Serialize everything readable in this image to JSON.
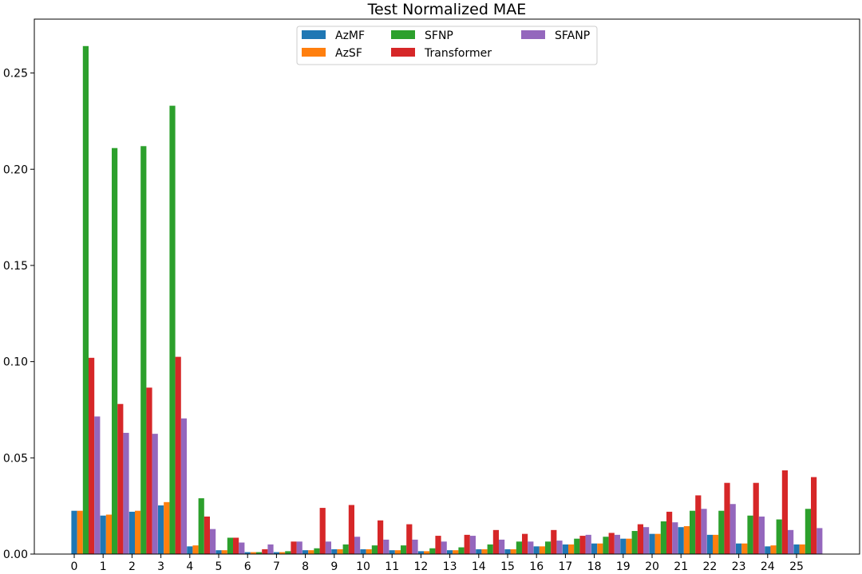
{
  "chart_data": {
    "type": "bar",
    "title": "Test Normalized MAE",
    "xlabel": "",
    "ylabel": "",
    "categories": [
      "0",
      "1",
      "2",
      "3",
      "4",
      "5",
      "6",
      "7",
      "8",
      "9",
      "10",
      "11",
      "12",
      "13",
      "14",
      "15",
      "16",
      "17",
      "18",
      "19",
      "20",
      "21",
      "22",
      "23",
      "24",
      "25"
    ],
    "ylim": [
      0,
      0.278
    ],
    "yticks": [
      0.0,
      0.05,
      0.1,
      0.15,
      0.2,
      0.25
    ],
    "ytick_labels": [
      "0.00",
      "0.05",
      "0.10",
      "0.15",
      "0.20",
      "0.25"
    ],
    "grid": false,
    "legend": {
      "placement": "top-center",
      "columns": 3
    },
    "series": [
      {
        "name": "AzMF",
        "color": "#1f77b4",
        "values": [
          0.0225,
          0.02,
          0.022,
          0.0253,
          0.004,
          0.002,
          0.001,
          0.001,
          0.002,
          0.0025,
          0.0025,
          0.002,
          0.0015,
          0.002,
          0.0025,
          0.0025,
          0.004,
          0.005,
          0.0055,
          0.008,
          0.0105,
          0.014,
          0.01,
          0.0055,
          0.004,
          0.005
        ]
      },
      {
        "name": "AzSF",
        "color": "#ff7f0e",
        "values": [
          0.0225,
          0.0205,
          0.0225,
          0.027,
          0.0045,
          0.002,
          0.001,
          0.001,
          0.002,
          0.0025,
          0.0025,
          0.002,
          0.0015,
          0.002,
          0.0025,
          0.0025,
          0.004,
          0.005,
          0.0055,
          0.008,
          0.0105,
          0.0145,
          0.01,
          0.0055,
          0.0045,
          0.005
        ]
      },
      {
        "name": "SFNP",
        "color": "#2ca02c",
        "values": [
          0.264,
          0.211,
          0.212,
          0.233,
          0.029,
          0.0085,
          0.001,
          0.0015,
          0.003,
          0.005,
          0.0045,
          0.0045,
          0.003,
          0.0035,
          0.005,
          0.0065,
          0.0065,
          0.008,
          0.009,
          0.012,
          0.017,
          0.0225,
          0.0225,
          0.02,
          0.018,
          0.0235
        ]
      },
      {
        "name": "Transformer",
        "color": "#d62728",
        "values": [
          0.102,
          0.078,
          0.0865,
          0.1025,
          0.0195,
          0.0085,
          0.0025,
          0.0065,
          0.024,
          0.0255,
          0.0175,
          0.0155,
          0.0095,
          0.01,
          0.0125,
          0.0105,
          0.0125,
          0.0095,
          0.011,
          0.0155,
          0.022,
          0.0305,
          0.037,
          0.037,
          0.0435,
          0.04
        ]
      },
      {
        "name": "SFANP",
        "color": "#9467bd",
        "values": [
          0.0715,
          0.063,
          0.0625,
          0.0705,
          0.013,
          0.006,
          0.005,
          0.0065,
          0.0065,
          0.009,
          0.0075,
          0.0075,
          0.0065,
          0.0095,
          0.0075,
          0.0065,
          0.007,
          0.01,
          0.01,
          0.014,
          0.0165,
          0.0235,
          0.026,
          0.0195,
          0.0125,
          0.0135
        ]
      }
    ]
  }
}
